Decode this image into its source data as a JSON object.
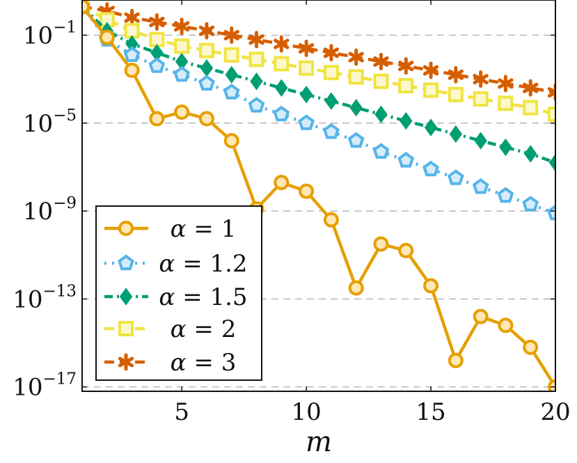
{
  "chart_data": {
    "type": "line",
    "title": "",
    "xlabel": "m",
    "ylabel": "",
    "xlim": [
      1,
      20
    ],
    "ylim_log10": [
      -17.2,
      0.6
    ],
    "yscale": "log",
    "grid": "horizontal dashed",
    "legend_position": "bottom-left",
    "x_ticks": [
      {
        "value": 5,
        "label": "5"
      },
      {
        "value": 10,
        "label": "10"
      },
      {
        "value": 15,
        "label": "15"
      },
      {
        "value": 20,
        "label": "20"
      }
    ],
    "y_ticks": [
      {
        "exp": -1,
        "base": "10",
        "power": "−1"
      },
      {
        "exp": -5,
        "base": "10",
        "power": "−5"
      },
      {
        "exp": -9,
        "base": "10",
        "power": "−9"
      },
      {
        "exp": -13,
        "base": "10",
        "power": "−13"
      },
      {
        "exp": -17,
        "base": "10",
        "power": "−17"
      }
    ],
    "x": [
      1,
      2,
      3,
      4,
      5,
      6,
      7,
      8,
      9,
      10,
      11,
      12,
      13,
      14,
      15,
      16,
      17,
      18,
      19,
      20
    ],
    "series": [
      {
        "name": "α = 1",
        "greek": "α",
        "value_label": "= 1",
        "color": "#E69F00",
        "marker": "circle",
        "dash": "solid",
        "log10_values": [
          0.3,
          -1.1,
          -2.6,
          -4.8,
          -4.5,
          -4.8,
          -5.8,
          -8.9,
          -7.7,
          -8.1,
          -9.4,
          -12.5,
          -10.5,
          -10.8,
          -12.4,
          -15.8,
          -13.8,
          -14.2,
          -15.2,
          -17.0
        ]
      },
      {
        "name": "α = 1.2",
        "greek": "α",
        "value_label": "= 1.2",
        "color": "#56B4E9",
        "marker": "pentagon",
        "dash": "dotted",
        "log10_values": [
          0.3,
          -1.2,
          -1.9,
          -2.4,
          -2.8,
          -3.2,
          -3.6,
          -4.2,
          -4.6,
          -5.0,
          -5.4,
          -5.8,
          -6.3,
          -6.7,
          -7.1,
          -7.5,
          -7.9,
          -8.3,
          -8.7,
          -9.1
        ]
      },
      {
        "name": "α = 1.5",
        "greek": "α",
        "value_label": "= 1.5",
        "color": "#009E73",
        "marker": "diamond",
        "dash": "dashdot",
        "log10_values": [
          0.3,
          -0.8,
          -1.4,
          -1.8,
          -2.2,
          -2.5,
          -2.8,
          -3.1,
          -3.4,
          -3.7,
          -4.0,
          -4.3,
          -4.6,
          -4.9,
          -5.2,
          -5.5,
          -5.8,
          -6.1,
          -6.4,
          -6.8
        ]
      },
      {
        "name": "α = 2",
        "greek": "α",
        "value_label": "= 2",
        "color": "#F0E442",
        "marker": "square",
        "dash": "dashed",
        "log10_values": [
          0.3,
          -0.3,
          -0.8,
          -1.2,
          -1.5,
          -1.7,
          -1.9,
          -2.1,
          -2.3,
          -2.5,
          -2.7,
          -2.9,
          -3.1,
          -3.3,
          -3.5,
          -3.7,
          -3.9,
          -4.1,
          -4.3,
          -4.6
        ]
      },
      {
        "name": "α = 3",
        "greek": "α",
        "value_label": "= 3",
        "color": "#D55E00",
        "marker": "star",
        "dash": "dashed",
        "log10_values": [
          0.3,
          0.1,
          -0.2,
          -0.4,
          -0.6,
          -0.8,
          -1.0,
          -1.2,
          -1.4,
          -1.6,
          -1.8,
          -2.0,
          -2.2,
          -2.4,
          -2.6,
          -2.8,
          -3.0,
          -3.2,
          -3.4,
          -3.6
        ]
      }
    ]
  }
}
